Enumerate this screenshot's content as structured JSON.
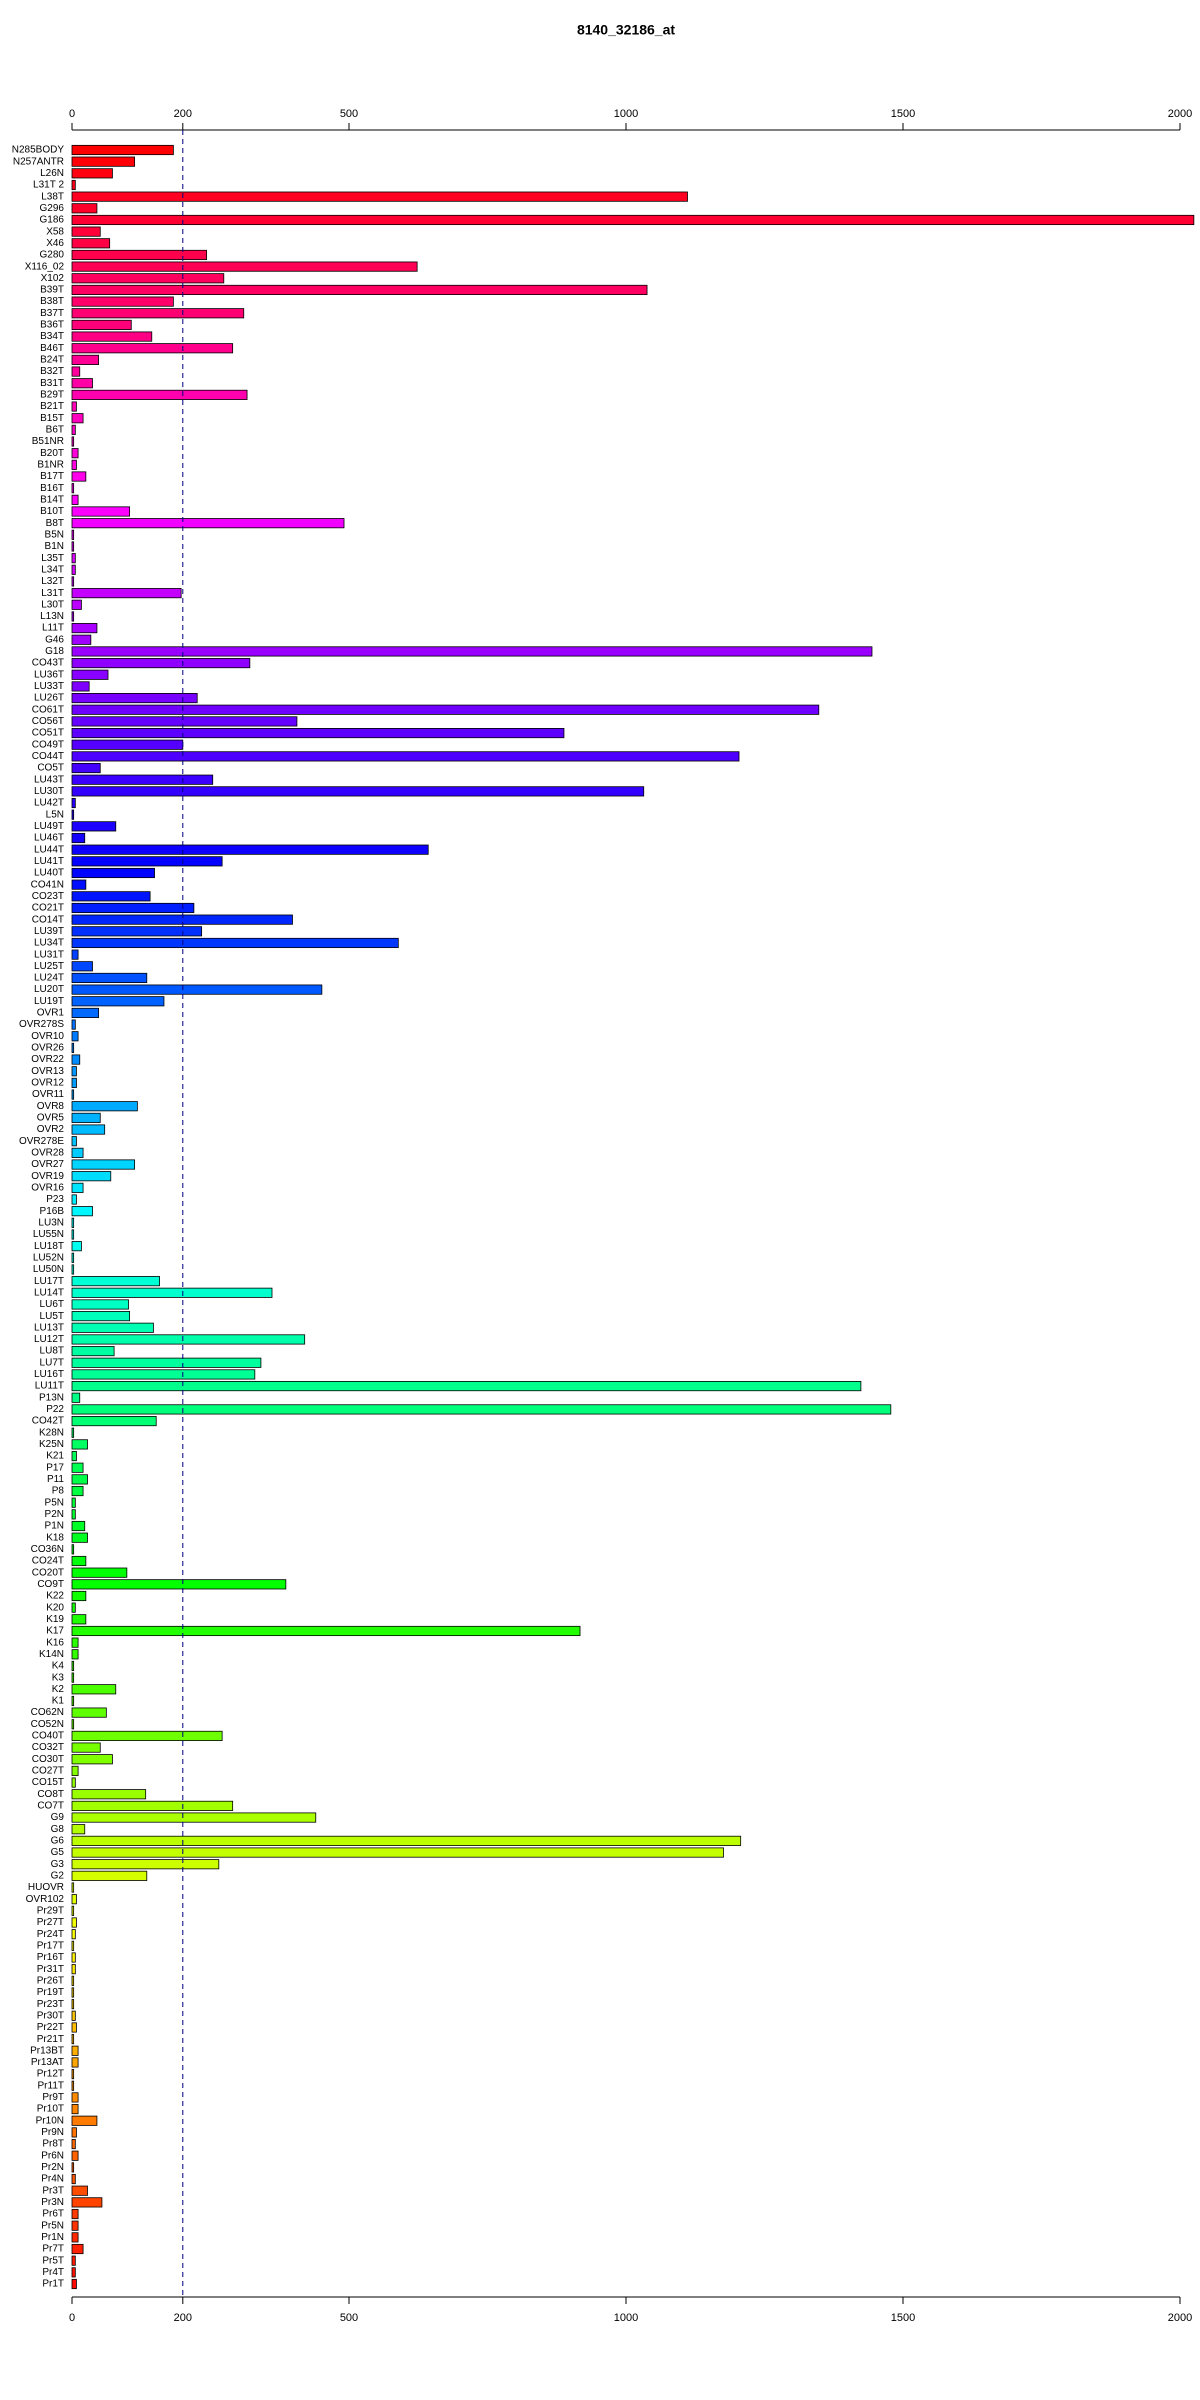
{
  "chart_data": {
    "type": "barh",
    "title": "8140_32186_at",
    "categories": [
      "N285BODY",
      "N257ANTR",
      "L26N",
      "L31T 2",
      "L38T",
      "G296",
      "G186",
      "X58",
      "X46",
      "G280",
      "X116_02",
      "X102",
      "B39T",
      "B38T",
      "B37T",
      "B36T",
      "B34T",
      "B46T",
      "B24T",
      "B32T",
      "B31T",
      "B29T",
      "B21T",
      "B15T",
      "B6T",
      "B51NR",
      "B20T",
      "B1NR",
      "B17T",
      "B16T",
      "B14T",
      "B10T",
      "B8T",
      "B5N",
      "B1N",
      "L35T",
      "L34T",
      "L32T",
      "L31T",
      "L30T",
      "L13N",
      "L11T",
      "G46",
      "G18",
      "CO43T",
      "LU36T",
      "LU33T",
      "LU26T",
      "CO61T",
      "CO56T",
      "CO51T",
      "CO49T",
      "CO44T",
      "CO5T",
      "LU43T",
      "LU30T",
      "LU42T",
      "L5N",
      "LU49T",
      "LU46T",
      "LU44T",
      "LU41T",
      "LU40T",
      "CO41N",
      "CO23T",
      "CO21T",
      "CO14T",
      "LU39T",
      "LU34T",
      "LU31T",
      "LU25T",
      "LU24T",
      "LU20T",
      "LU19T",
      "OVR1",
      "OVR278S",
      "OVR10",
      "OVR26",
      "OVR22",
      "OVR13",
      "OVR12",
      "OVR11",
      "OVR8",
      "OVR5",
      "OVR2",
      "OVR278E",
      "OVR28",
      "OVR27",
      "OVR19",
      "OVR16",
      "P23",
      "P16B",
      "LU3N",
      "LU55N",
      "LU18T",
      "LU52N",
      "LU50N",
      "LU17T",
      "LU14T",
      "LU6T",
      "LU5T",
      "LU13T",
      "LU12T",
      "LU8T",
      "LU7T",
      "LU16T",
      "LU11T",
      "P13N",
      "P22",
      "CO42T",
      "K28N",
      "K25N",
      "K21",
      "P17",
      "P11",
      "P8",
      "P5N",
      "P2N",
      "P1N",
      "K18",
      "CO36N",
      "CO24T",
      "CO20T",
      "CO9T",
      "K22",
      "K20",
      "K19",
      "K17",
      "K16",
      "K14N",
      "K4",
      "K3",
      "K2",
      "K1",
      "CO62N",
      "CO52N",
      "CO40T",
      "CO32T",
      "CO30T",
      "CO27T",
      "CO15T",
      "CO8T",
      "CO7T",
      "G9",
      "G8",
      "G6",
      "G5",
      "G3",
      "G2",
      "HUOVR",
      "OVR102",
      "Pr29T",
      "Pr27T",
      "Pr24T",
      "Pr17T",
      "Pr16T",
      "Pr31T",
      "Pr26T",
      "Pr19T",
      "Pr23T",
      "Pr30T",
      "Pr22T",
      "Pr21T",
      "Pr13BT",
      "Pr13AT",
      "Pr12T",
      "Pr11T",
      "Pr9T",
      "Pr10T",
      "Pr10N",
      "Pr9N",
      "Pr8T",
      "Pr6N",
      "Pr2N",
      "Pr4N",
      "Pr3T",
      "Pr3N",
      "Pr6T",
      "Pr5N",
      "Pr1N",
      "Pr7T",
      "Pr5T",
      "Pr4T",
      "Pr1T"
    ],
    "values": [
      183,
      113,
      73,
      6,
      1111,
      45,
      2025,
      51,
      68,
      243,
      623,
      274,
      1038,
      183,
      310,
      107,
      144,
      290,
      48,
      14,
      37,
      316,
      8,
      20,
      6,
      3,
      11,
      8,
      25,
      3,
      11,
      104,
      491,
      3,
      3,
      6,
      6,
      3,
      197,
      17,
      3,
      45,
      34,
      1444,
      321,
      65,
      31,
      226,
      1348,
      406,
      888,
      200,
      1204,
      51,
      254,
      1032,
      6,
      3,
      79,
      23,
      643,
      271,
      149,
      25,
      141,
      220,
      398,
      234,
      589,
      11,
      37,
      135,
      451,
      166,
      48,
      6,
      11,
      3,
      14,
      8,
      8,
      3,
      118,
      51,
      59,
      8,
      20,
      113,
      70,
      20,
      8,
      37,
      3,
      3,
      17,
      3,
      3,
      158,
      361,
      102,
      104,
      147,
      420,
      76,
      341,
      330,
      1424,
      14,
      1478,
      152,
      3,
      28,
      8,
      20,
      28,
      20,
      6,
      6,
      23,
      28,
      3,
      25,
      99,
      386,
      25,
      6,
      25,
      917,
      11,
      11,
      3,
      3,
      79,
      3,
      62,
      3,
      271,
      51,
      73,
      11,
      6,
      133,
      290,
      440,
      23,
      1207,
      1176,
      265,
      135,
      3,
      8,
      3,
      8,
      6,
      3,
      6,
      6,
      3,
      3,
      3,
      6,
      8,
      3,
      11,
      11,
      3,
      3,
      11,
      11,
      45,
      8,
      6,
      11,
      3,
      6,
      28,
      54,
      11,
      11,
      11,
      20,
      6,
      6,
      8
    ],
    "colors": [
      "hsl(360,100%,50%)",
      "hsl(358,100%,50%)",
      "hsl(356,100%,50%)",
      "hsl(354,100%,50%)",
      "hsl(352,100%,50%)",
      "hsl(350,100%,50%)",
      "hsl(348,100%,50%)",
      "hsl(346,100%,50%)",
      "hsl(344,100%,50%)",
      "hsl(342,100%,50%)",
      "hsl(340,100%,50%)",
      "hsl(338,100%,50%)",
      "hsl(337,100%,50%)",
      "hsl(335,100%,50%)",
      "hsl(333,100%,50%)",
      "hsl(331,100%,50%)",
      "hsl(329,100%,50%)",
      "hsl(327,100%,50%)",
      "hsl(325,100%,50%)",
      "hsl(323,100%,50%)",
      "hsl(321,100%,50%)",
      "hsl(319,100%,50%)",
      "hsl(317,100%,50%)",
      "hsl(315,100%,50%)",
      "hsl(313,100%,50%)",
      "hsl(311,100%,50%)",
      "hsl(309,100%,50%)",
      "hsl(307,100%,50%)",
      "hsl(305,100%,50%)",
      "hsl(303,100%,50%)",
      "hsl(301,100%,50%)",
      "hsl(299,100%,50%)",
      "hsl(297,100%,50%)",
      "hsl(295,100%,50%)",
      "hsl(293,100%,50%)",
      "hsl(292,100%,50%)",
      "hsl(290,100%,50%)",
      "hsl(288,100%,50%)",
      "hsl(286,100%,50%)",
      "hsl(284,100%,50%)",
      "hsl(282,100%,50%)",
      "hsl(280,100%,50%)",
      "hsl(278,100%,50%)",
      "hsl(276,100%,50%)",
      "hsl(274,100%,50%)",
      "hsl(272,100%,50%)",
      "hsl(270,100%,50%)",
      "hsl(268,100%,50%)",
      "hsl(266,100%,50%)",
      "hsl(264,100%,50%)",
      "hsl(262,100%,50%)",
      "hsl(260,100%,50%)",
      "hsl(258,100%,50%)",
      "hsl(256,100%,50%)",
      "hsl(254,100%,50%)",
      "hsl(252,100%,50%)",
      "hsl(250,100%,50%)",
      "hsl(248,100%,50%)",
      "hsl(247,100%,50%)",
      "hsl(245,100%,50%)",
      "hsl(243,100%,50%)",
      "hsl(241,100%,50%)",
      "hsl(239,100%,50%)",
      "hsl(237,100%,50%)",
      "hsl(235,100%,50%)",
      "hsl(233,100%,50%)",
      "hsl(231,100%,50%)",
      "hsl(229,100%,50%)",
      "hsl(227,100%,50%)",
      "hsl(225,100%,50%)",
      "hsl(223,100%,50%)",
      "hsl(221,100%,50%)",
      "hsl(219,100%,50%)",
      "hsl(217,100%,50%)",
      "hsl(215,100%,50%)",
      "hsl(213,100%,50%)",
      "hsl(211,100%,50%)",
      "hsl(209,100%,50%)",
      "hsl(207,100%,50%)",
      "hsl(205,100%,50%)",
      "hsl(203,100%,50%)",
      "hsl(202,100%,50%)",
      "hsl(200,100%,50%)",
      "hsl(198,100%,50%)",
      "hsl(196,100%,50%)",
      "hsl(194,100%,50%)",
      "hsl(192,100%,50%)",
      "hsl(190,100%,50%)",
      "hsl(188,100%,50%)",
      "hsl(186,100%,50%)",
      "hsl(184,100%,50%)",
      "hsl(182,100%,50%)",
      "hsl(180,100%,50%)",
      "hsl(178,100%,50%)",
      "hsl(176,100%,50%)",
      "hsl(174,100%,50%)",
      "hsl(172,100%,50%)",
      "hsl(170,100%,50%)",
      "hsl(168,100%,50%)",
      "hsl(166,100%,50%)",
      "hsl(164,100%,50%)",
      "hsl(162,100%,50%)",
      "hsl(160,100%,50%)",
      "hsl(158,100%,50%)",
      "hsl(157,100%,50%)",
      "hsl(155,100%,50%)",
      "hsl(153,100%,50%)",
      "hsl(151,100%,50%)",
      "hsl(149,100%,50%)",
      "hsl(147,100%,50%)",
      "hsl(145,100%,50%)",
      "hsl(143,100%,50%)",
      "hsl(141,100%,50%)",
      "hsl(139,100%,50%)",
      "hsl(137,100%,50%)",
      "hsl(135,100%,50%)",
      "hsl(133,100%,50%)",
      "hsl(131,100%,50%)",
      "hsl(129,100%,50%)",
      "hsl(127,100%,50%)",
      "hsl(125,100%,50%)",
      "hsl(123,100%,50%)",
      "hsl(121,100%,50%)",
      "hsl(119,100%,50%)",
      "hsl(117,100%,50%)",
      "hsl(115,100%,50%)",
      "hsl(113,100%,50%)",
      "hsl(112,100%,50%)",
      "hsl(110,100%,50%)",
      "hsl(108,100%,50%)",
      "hsl(106,100%,50%)",
      "hsl(104,100%,50%)",
      "hsl(102,100%,50%)",
      "hsl(100,100%,50%)",
      "hsl(98,100%,50%)",
      "hsl(96,100%,50%)",
      "hsl(94,100%,50%)",
      "hsl(92,100%,50%)",
      "hsl(90,100%,50%)",
      "hsl(88,100%,50%)",
      "hsl(86,100%,50%)",
      "hsl(84,100%,50%)",
      "hsl(82,100%,50%)",
      "hsl(80,100%,50%)",
      "hsl(78,100%,50%)",
      "hsl(76,100%,50%)",
      "hsl(74,100%,50%)",
      "hsl(72,100%,50%)",
      "hsl(70,100%,50%)",
      "hsl(68,100%,50%)",
      "hsl(67,100%,50%)",
      "hsl(65,100%,50%)",
      "hsl(63,100%,50%)",
      "hsl(61,100%,50%)",
      "hsl(59,100%,50%)",
      "hsl(57,100%,50%)",
      "hsl(55,100%,50%)",
      "hsl(53,100%,50%)",
      "hsl(51,100%,50%)",
      "hsl(49,100%,50%)",
      "hsl(47,100%,50%)",
      "hsl(45,100%,50%)",
      "hsl(43,100%,50%)",
      "hsl(41,100%,50%)",
      "hsl(39,100%,50%)",
      "hsl(37,100%,50%)",
      "hsl(35,100%,50%)",
      "hsl(33,100%,50%)",
      "hsl(31,100%,50%)",
      "hsl(29,100%,50%)",
      "hsl(27,100%,50%)",
      "hsl(25,100%,50%)",
      "hsl(23,100%,50%)",
      "hsl(22,100%,50%)",
      "hsl(20,100%,50%)",
      "hsl(18,100%,50%)",
      "hsl(16,100%,50%)",
      "hsl(14,100%,50%)",
      "hsl(12,100%,50%)",
      "hsl(10,100%,50%)",
      "hsl(8,100%,50%)",
      "hsl(6,100%,50%)",
      "hsl(4,100%,50%)",
      "hsl(2,100%,50%)"
    ],
    "xlim": [
      0,
      2000
    ],
    "xticks": [
      0,
      200,
      500,
      1000,
      1500,
      2000
    ],
    "reference_line": 200
  }
}
